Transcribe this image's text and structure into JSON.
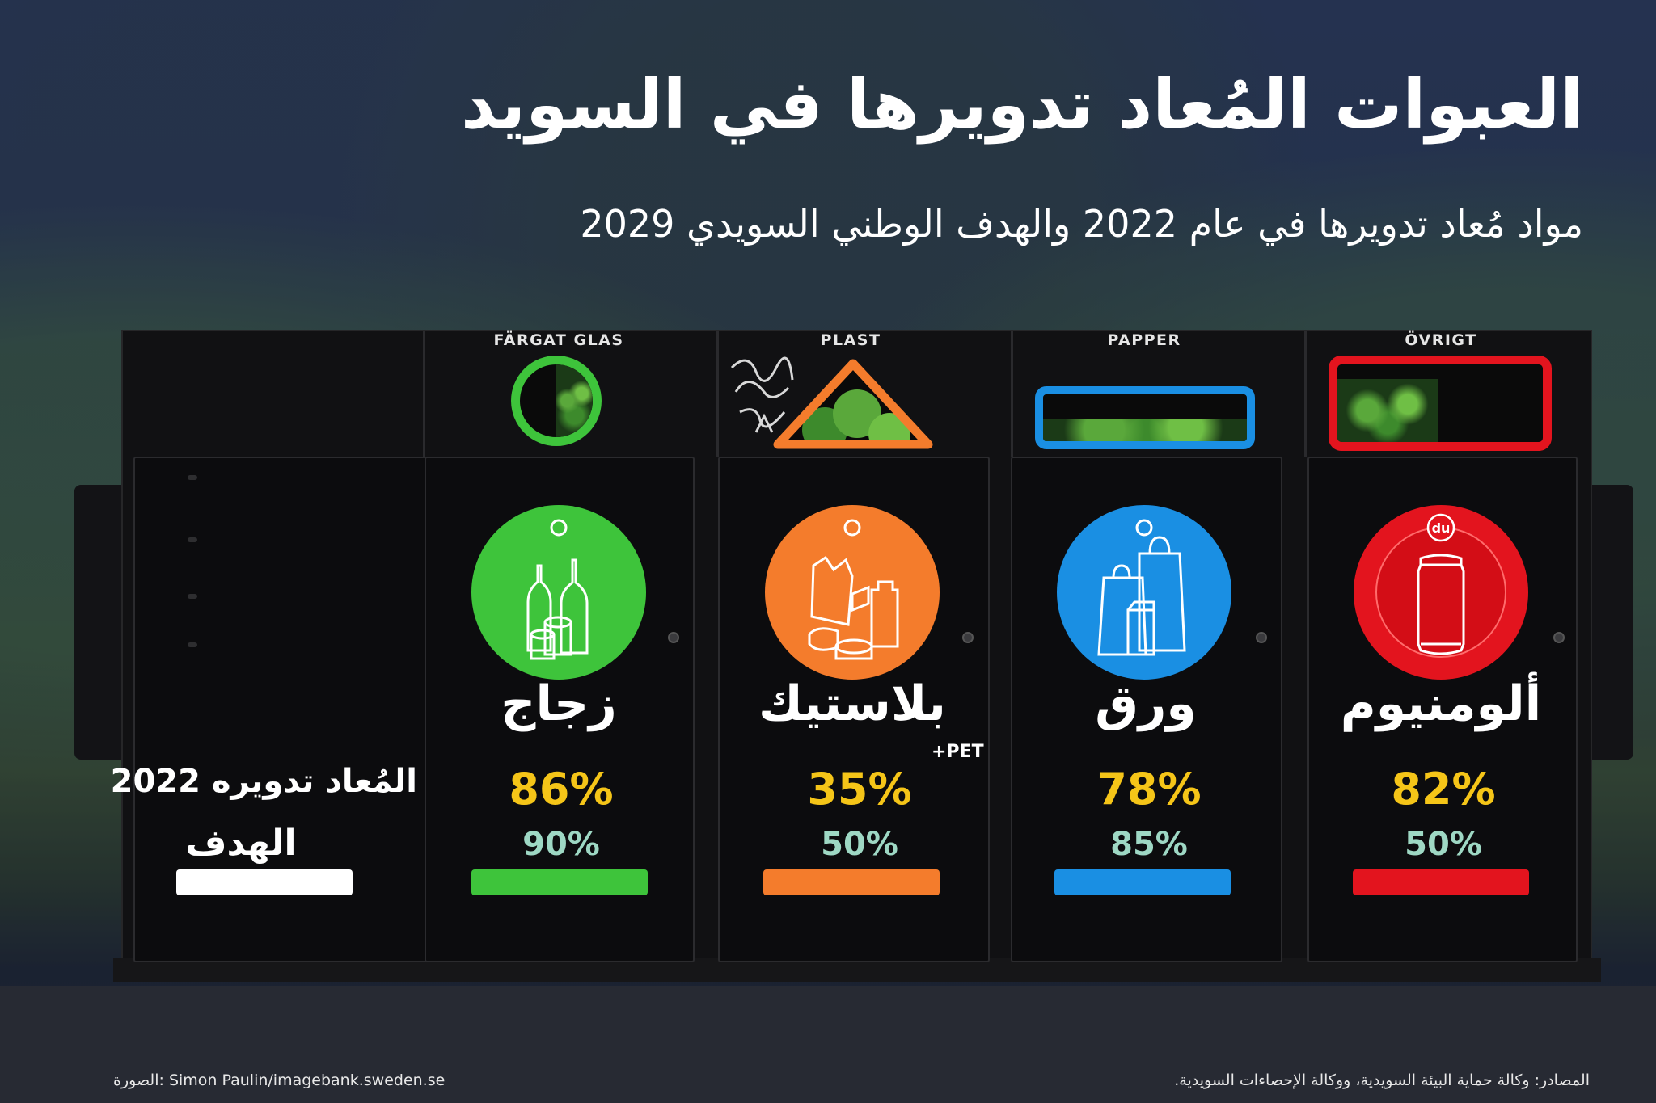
{
  "title": "العبوات المُعاد تدويرها في السويد",
  "subtitle": "مواد مُعاد تدويرها في عام 2022 والهدف الوطني السويدي 2029",
  "legend": {
    "recycled_label": "المُعاد تدويره 2022",
    "goal_label": "الهدف",
    "goal_bar_color": "#ffffff"
  },
  "bins": [
    {
      "sign": "FÄRGAT GLAS",
      "opening_shape": "circle",
      "material": "زجاج",
      "recycled_2022": "86%",
      "goal": "90%",
      "color": "#3ec43b",
      "icon": "glass-bottles-icon"
    },
    {
      "sign": "PLAST",
      "opening_shape": "triangle",
      "material": "بلاستيك",
      "note": "+PET",
      "recycled_2022": "35%",
      "goal": "50%",
      "color": "#f47c2c",
      "icon": "plastic-items-icon"
    },
    {
      "sign": "PAPPER",
      "opening_shape": "slot",
      "material": "ورق",
      "recycled_2022": "78%",
      "goal": "85%",
      "color": "#1a8fe3",
      "icon": "paper-bags-icon"
    },
    {
      "sign": "ÖVRIGT",
      "opening_shape": "rectangle",
      "material": "ألومنيوم",
      "recycled_2022": "82%",
      "goal": "50%",
      "color": "#e3141e",
      "icon": "aluminium-can-icon",
      "badge": "du"
    }
  ],
  "footer": {
    "sources": "المصادر: وكالة حماية البيئة السويدية، ووكالة الإحصاءات السويدية.",
    "photo_credit": "الصورة: Simon Paulin/imagebank.sweden.se"
  },
  "highlight_color": "#f5c518",
  "goal_text_color": "#9ed8c4"
}
